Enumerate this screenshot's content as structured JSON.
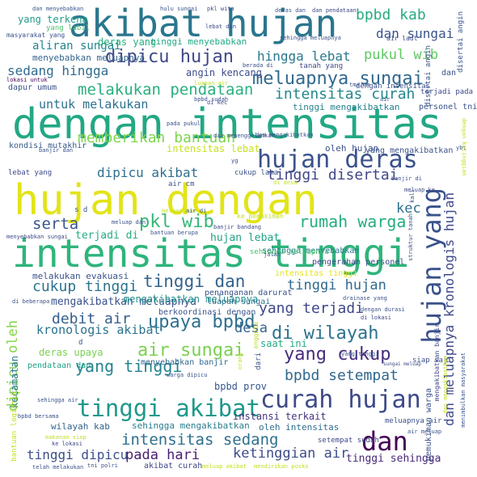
{
  "words": [
    {
      "text": "hujan dengan",
      "color": "#e2e418"
    },
    {
      "text": "dengan intensitas",
      "color": "#22a884"
    },
    {
      "text": "intensitas tinggi",
      "color": "#2fb47c"
    },
    {
      "text": "akibat hujan",
      "color": "#2a768e"
    },
    {
      "text": "hujan yang",
      "color": "#3b528b"
    },
    {
      "text": "hujan deras",
      "color": "#3b528b"
    },
    {
      "text": "curah hujan",
      "color": "#3e4a89"
    },
    {
      "text": "tinggi akibat",
      "color": "#1f988b"
    },
    {
      "text": "dan",
      "color": "#440154"
    },
    {
      "text": "meluapnya sungai",
      "color": "#31688e"
    },
    {
      "text": "dipicu hujan",
      "color": "#3e4989"
    },
    {
      "text": "di wilayah",
      "color": "#2c728e"
    },
    {
      "text": "upaya bpbd",
      "color": "#2d708e"
    },
    {
      "text": "tinggi dan",
      "color": "#33638d"
    },
    {
      "text": "intensitas sedang",
      "color": "#2e6f8e"
    },
    {
      "text": "air sungai",
      "color": "#7ad151"
    },
    {
      "text": "yang tinggi",
      "color": "#25848e"
    },
    {
      "text": "yang cukup",
      "color": "#472d7b"
    },
    {
      "text": "pkl wib",
      "color": "#35b779"
    },
    {
      "text": "rumah warga",
      "color": "#26ad81"
    },
    {
      "text": "memberikan bantuan",
      "color": "#7fd34e"
    },
    {
      "text": "melakukan pendataan",
      "color": "#2ab07f"
    },
    {
      "text": "intensitas curah",
      "color": "#24878e"
    },
    {
      "text": "dipicu akibat",
      "color": "#2e6f8e"
    },
    {
      "text": "tinggi disertai",
      "color": "#404688"
    },
    {
      "text": "kec",
      "color": "#2d718e"
    },
    {
      "text": "serta",
      "color": "#3a548c"
    },
    {
      "text": "cukup tinggi",
      "color": "#2c738e"
    },
    {
      "text": "tinggi hujan",
      "color": "#30698e"
    },
    {
      "text": "debit air",
      "color": "#365d8d"
    },
    {
      "text": "yang terjadi",
      "color": "#3f4788"
    },
    {
      "text": "desa",
      "color": "#33638d"
    },
    {
      "text": "kronologis akibat",
      "color": "#2c738e"
    },
    {
      "text": "bpbd setempat",
      "color": "#31688e"
    },
    {
      "text": "pada hari",
      "color": "#481f70"
    },
    {
      "text": "ketinggian air",
      "color": "#3d4d8a"
    },
    {
      "text": "tinggi dipicu",
      "color": "#3c4f8a"
    },
    {
      "text": "bpbd kab",
      "color": "#25ab82"
    },
    {
      "text": "dan sungai",
      "color": "#3a548c"
    },
    {
      "text": "pukul wib",
      "color": "#5ec962"
    },
    {
      "text": "hingga lebat",
      "color": "#2a788e"
    },
    {
      "text": "sedang hingga",
      "color": "#2f6b8e"
    },
    {
      "text": "aliran sungai",
      "color": "#24868e"
    },
    {
      "text": "untuk melakukan",
      "color": "#2d708e"
    },
    {
      "text": "terjadi di",
      "color": "#25ab82"
    },
    {
      "text": "hujan lebat",
      "color": "#20a386"
    },
    {
      "text": "mengakibatkan meluapnya",
      "color": "#3b528b"
    },
    {
      "text": "tinggi sehingga",
      "color": "#482878"
    },
    {
      "text": "yang terkena",
      "color": "#1f9a8a"
    },
    {
      "text": "deras yang",
      "color": "#29af7f"
    },
    {
      "text": "tinggi menyebabkan",
      "color": "#22a884"
    },
    {
      "text": "menyebabkan meluapnya",
      "color": "#33638d"
    },
    {
      "text": "angin kencang",
      "color": "#3e4c8a"
    },
    {
      "text": "tinggi mengakibatkan",
      "color": "#26828e"
    },
    {
      "text": "kondisi mutakhir",
      "color": "#38598c"
    },
    {
      "text": "intensitas lebat",
      "color": "#c8e020"
    },
    {
      "text": "oleh hujan",
      "color": "#3b528b"
    },
    {
      "text": "yang mengakibatkan",
      "color": "#3b528b"
    },
    {
      "text": "dipicu oleh",
      "color": "#86d549"
    },
    {
      "text": "dan meluapnya kronologis hujan",
      "color": "#3e4989"
    },
    {
      "text": "melakukan evakuasi",
      "color": "#3b528b"
    },
    {
      "text": "mengakibatkan meluapnya",
      "color": "#21918c"
    },
    {
      "text": "berkoordinasi dengan",
      "color": "#3b528b"
    },
    {
      "text": "sehingga menyebabkan",
      "color": "#2a788e"
    },
    {
      "text": "pengerahan personel",
      "color": "#3e4989"
    },
    {
      "text": "penanganan darurat",
      "color": "#3b528b"
    },
    {
      "text": "intensitas tinggi",
      "color": "#e5e419"
    },
    {
      "text": "luapan sungai",
      "color": "#2c728e"
    },
    {
      "text": "saat ini",
      "color": "#25ab82"
    },
    {
      "text": "deras upaya",
      "color": "#7ad151"
    },
    {
      "text": "menyebabkan banjir",
      "color": "#31688e"
    },
    {
      "text": "bpbd prov",
      "color": "#38598c"
    },
    {
      "text": "instansi terkait",
      "color": "#46327e"
    },
    {
      "text": "oleh intensitas",
      "color": "#2e6e8e"
    },
    {
      "text": "sehingga mengakibatkan",
      "color": "#287c8e"
    },
    {
      "text": "wilayah kab",
      "color": "#33638d"
    },
    {
      "text": "setempat sudah",
      "color": "#3e4989"
    },
    {
      "text": "akibat curah",
      "color": "#3f4788"
    },
    {
      "text": "pendataan dan",
      "color": "#1fa187"
    },
    {
      "text": "kecamatan",
      "color": "#2a788e"
    },
    {
      "text": "lokasi untuk",
      "color": "#440154"
    },
    {
      "text": "dapur umum",
      "color": "#3b528b"
    },
    {
      "text": "personel tni",
      "color": "#3b528b"
    },
    {
      "text": "terjadi pada",
      "color": "#3e4989"
    },
    {
      "text": "cukup lama",
      "color": "#3b528b"
    },
    {
      "text": "air cm",
      "color": "#3b528b"
    },
    {
      "text": "lebat yang",
      "color": "#3e4989"
    },
    {
      "text": "ke pemukiman",
      "color": "#c2df23"
    },
    {
      "text": "sehingga meluapnya",
      "color": "#46c06f"
    },
    {
      "text": "sungai meluap",
      "color": "#3e4989"
    },
    {
      "text": "siap saji",
      "color": "#3b528b"
    },
    {
      "text": "pemukiman warga",
      "color": "#3b528b"
    },
    {
      "text": "meluapnya air",
      "color": "#3b528b"
    },
    {
      "text": "dengan intensitas",
      "color": "#3b528b"
    },
    {
      "text": "tanah yang",
      "color": "#3e4989"
    },
    {
      "text": "masyarakat yang",
      "color": "#3b528b"
    },
    {
      "text": "yang labil",
      "color": "#4ac16d"
    },
    {
      "text": "air laut",
      "color": "#3e4989"
    },
    {
      "text": "disertai angin",
      "color": "#3b528b"
    },
    {
      "text": "dan menyebabkan",
      "color": "#3b528b"
    },
    {
      "text": "hulu sungai",
      "color": "#3b528b"
    },
    {
      "text": "pkl wita",
      "color": "#3e4989"
    },
    {
      "text": "deras dan",
      "color": "#3b528b"
    },
    {
      "text": "dan pendataan",
      "color": "#3e4989"
    },
    {
      "text": "sehingga meluapnya",
      "color": "#3b528b"
    },
    {
      "text": "lebat dan",
      "color": "#3e4989"
    },
    {
      "text": "dan mengakibatkan",
      "color": "#3b528b"
    },
    {
      "text": "di kec",
      "color": "#3e4989"
    },
    {
      "text": "pada pukul",
      "color": "#3b528b"
    },
    {
      "text": "dan menenggelamkan",
      "color": "#3b528b"
    },
    {
      "text": "banjir dan",
      "color": "#3b528b"
    },
    {
      "text": "kali",
      "color": "#3b528b"
    },
    {
      "text": "meluap ke",
      "color": "#3e4989"
    },
    {
      "text": "banjir di",
      "color": "#3b528b"
    },
    {
      "text": "bantuan berupa",
      "color": "#3b528b"
    },
    {
      "text": "banjir bandang",
      "color": "#3e4989"
    },
    {
      "text": "meluap dan",
      "color": "#3b528b"
    },
    {
      "text": "menyebabkan sungai",
      "color": "#3e4989"
    },
    {
      "text": "jalan",
      "color": "#3b528b"
    },
    {
      "text": "di beberapa",
      "color": "#3b528b"
    },
    {
      "text": "dengan durasi",
      "color": "#3b528b"
    },
    {
      "text": "di lokasi",
      "color": "#3e4989"
    },
    {
      "text": "drainase yang",
      "color": "#3b528b"
    },
    {
      "text": "bantuan logistik",
      "color": "#c2df23"
    },
    {
      "text": "bpbd bersama",
      "color": "#3b528b"
    },
    {
      "text": "sehingga air",
      "color": "#3b528b"
    },
    {
      "text": "makanan siap",
      "color": "#c2df23"
    },
    {
      "text": "ke lokasi",
      "color": "#3e4989"
    },
    {
      "text": "telah melakukan",
      "color": "#3b528b"
    },
    {
      "text": "tni polri",
      "color": "#3b528b"
    },
    {
      "text": "meluap akibat",
      "color": "#c2df23"
    },
    {
      "text": "mendirikan posko",
      "color": "#c2df23"
    },
    {
      "text": "warga dipicu",
      "color": "#3b528b"
    },
    {
      "text": "yang tinggi",
      "color": "#3b528b"
    },
    {
      "text": "air meluap",
      "color": "#3b528b"
    },
    {
      "text": "struktur tanah",
      "color": "#3b528b"
    },
    {
      "text": "disertai angin",
      "color": "#3b528b"
    },
    {
      "text": "anggota",
      "color": "#c2df23"
    },
    {
      "text": "dari",
      "color": "#3b528b"
    },
    {
      "text": "orang",
      "color": "#c2df23"
    },
    {
      "text": "dan mengakibatkan",
      "color": "#c2df23"
    },
    {
      "text": "mengakibatkan banjir",
      "color": "#3e4989"
    },
    {
      "text": "menimbulkan masyarakat",
      "color": "#3b528b"
    },
    {
      "text": "ybt",
      "color": "#3b528b"
    },
    {
      "text": "s d",
      "color": "#3b528b"
    },
    {
      "text": "meluap dan",
      "color": "#c2df23"
    },
    {
      "text": "di desa",
      "color": "#c2df23"
    },
    {
      "text": "air di",
      "color": "#3b528b"
    },
    {
      "text": "yg",
      "color": "#3e4989"
    },
    {
      "text": "d",
      "color": "#3b528b"
    },
    {
      "text": "tma cm",
      "color": "#3b528b"
    },
    {
      "text": "berada di",
      "color": "#3b528b"
    },
    {
      "text": "luapan air",
      "color": "#c2df23"
    },
    {
      "text": "bpbd sudah",
      "color": "#3b528b"
    },
    {
      "text": "dengan ketinggian",
      "color": "#c2df23"
    },
    {
      "text": "air",
      "color": "#3b528b"
    },
    {
      "text": "dan",
      "color": "#3b528b"
    }
  ]
}
